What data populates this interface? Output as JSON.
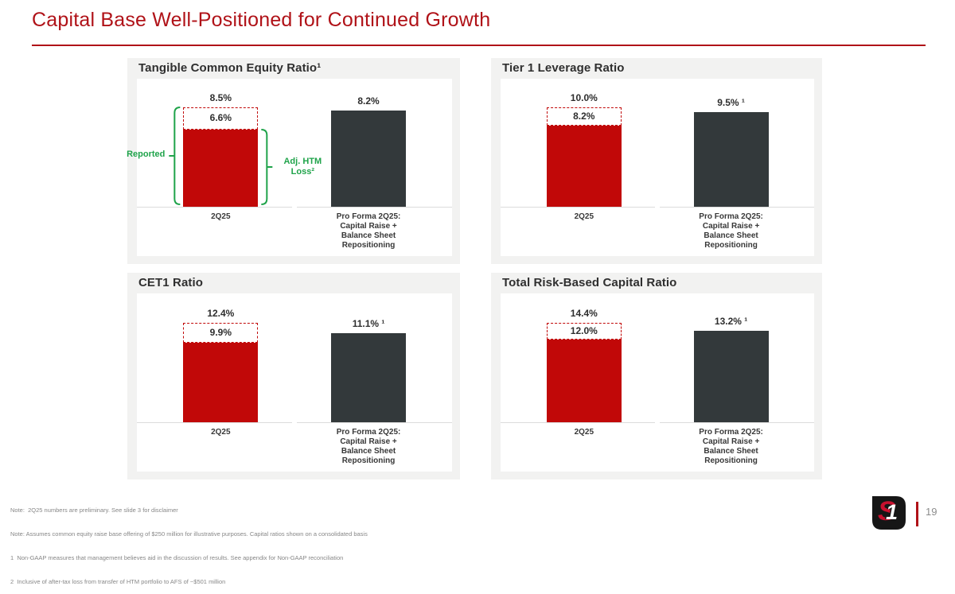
{
  "slide": {
    "title": "Capital Base Well-Positioned for Continued Growth",
    "page_number": "19",
    "logo": {
      "s_letter": "S",
      "one_digit": "1"
    }
  },
  "colors": {
    "title_red": "#b01218",
    "bar_red": "#c10808",
    "dashed_red": "#c10808",
    "bar_dark": "#33393b",
    "green": "#1fa34a",
    "panel_bg": "#f2f2f1",
    "baseline_gray": "#dcdcdc",
    "footnote_gray": "#878787"
  },
  "footnotes": [
    "Note:  2Q25 numbers are preliminary. See slide 3 for disclaimer",
    "Note: Assumes common equity raise base offering of $250 million for illustrative purposes. Capital ratios shown on a consolidated basis",
    "1  Non-GAAP measures that management believes aid in the discussion of results. See appendix for Non-GAAP reconciliation",
    "2  Inclusive of after-tax loss from transfer of HTM portfolio to AFS of ~$501 million"
  ],
  "chart_data": [
    {
      "type": "bar",
      "title": "Tangible Common Equity Ratio¹",
      "categories": [
        [
          "2Q25"
        ],
        [
          "Pro Forma 2Q25:",
          "Capital Raise +",
          "Balance Sheet",
          "Repositioning"
        ]
      ],
      "bars": [
        {
          "reported": 8.5,
          "reported_label": "8.5%",
          "adjusted": 6.6,
          "adjusted_label": "6.6%"
        },
        {
          "value": 8.2,
          "label": "8.2%"
        }
      ],
      "annotations": {
        "left_bracket_label": "Reported",
        "right_bracket_label_lines": [
          "Adj. HTM",
          "Loss²"
        ]
      },
      "ylim": [
        0,
        11
      ],
      "axis_visible": false
    },
    {
      "type": "bar",
      "title": "Tier 1 Leverage Ratio",
      "categories": [
        [
          "2Q25"
        ],
        [
          "Pro Forma 2Q25:",
          "Capital Raise +",
          "Balance Sheet",
          "Repositioning"
        ]
      ],
      "bars": [
        {
          "reported": 10.0,
          "reported_label": "10.0%",
          "adjusted": 8.2,
          "adjusted_label": "8.2%"
        },
        {
          "value": 9.5,
          "label": "9.5% ¹"
        }
      ],
      "annotations": null,
      "ylim": [
        0,
        13
      ],
      "axis_visible": false
    },
    {
      "type": "bar",
      "title": "CET1 Ratio",
      "categories": [
        [
          "2Q25"
        ],
        [
          "Pro Forma 2Q25:",
          "Capital Raise +",
          "Balance Sheet",
          "Repositioning"
        ]
      ],
      "bars": [
        {
          "reported": 12.4,
          "reported_label": "12.4%",
          "adjusted": 9.9,
          "adjusted_label": "9.9%"
        },
        {
          "value": 11.1,
          "label": "11.1% ¹"
        }
      ],
      "annotations": null,
      "ylim": [
        0,
        16
      ],
      "axis_visible": false
    },
    {
      "type": "bar",
      "title": "Total Risk-Based Capital Ratio",
      "categories": [
        [
          "2Q25"
        ],
        [
          "Pro Forma 2Q25:",
          "Capital Raise +",
          "Balance Sheet",
          "Repositioning"
        ]
      ],
      "bars": [
        {
          "reported": 14.4,
          "reported_label": "14.4%",
          "adjusted": 12.0,
          "adjusted_label": "12.0%"
        },
        {
          "value": 13.2,
          "label": "13.2% ¹"
        }
      ],
      "annotations": null,
      "ylim": [
        0,
        18.7
      ],
      "axis_visible": false
    }
  ]
}
